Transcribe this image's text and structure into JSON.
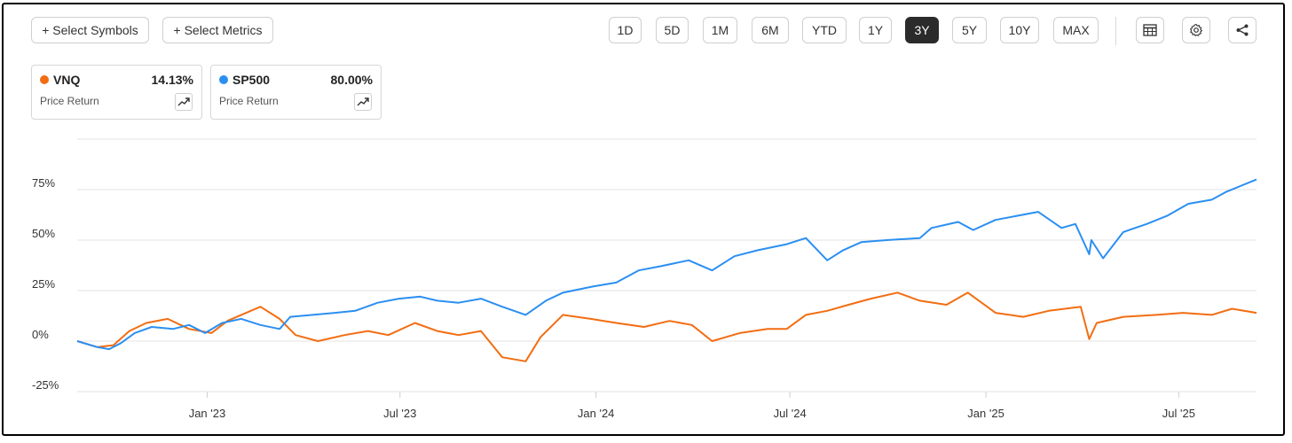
{
  "toolbar": {
    "select_symbols": "+ Select Symbols",
    "select_metrics": "+ Select Metrics",
    "ranges": [
      "1D",
      "5D",
      "1M",
      "6M",
      "YTD",
      "1Y",
      "3Y",
      "5Y",
      "10Y",
      "MAX"
    ],
    "active_range": "3Y",
    "icons": [
      "table-icon",
      "gear-icon",
      "share-icon"
    ]
  },
  "cards": [
    {
      "symbol": "VNQ",
      "value": "14.13%",
      "metric": "Price Return",
      "color": "#f26d12"
    },
    {
      "symbol": "SP500",
      "value": "80.00%",
      "metric": "Price Return",
      "color": "#2b8ff2"
    }
  ],
  "chart_data": {
    "type": "line",
    "x_tick_labels": [
      "Jan '23",
      "Jul '23",
      "Jan '24",
      "Jul '24",
      "Jan '25",
      "Jul '25"
    ],
    "x_tick_dates": [
      "2023-01-01",
      "2023-07-01",
      "2024-01-01",
      "2024-07-01",
      "2025-01-01",
      "2025-07-01"
    ],
    "x_range": [
      "2022-09-01",
      "2025-09-12"
    ],
    "y_ticks": [
      -25,
      0,
      25,
      50,
      75
    ],
    "y_tick_labels": [
      "-25%",
      "0%",
      "25%",
      "50%",
      "75%"
    ],
    "ylim": [
      -25,
      100
    ],
    "grid": true,
    "series": [
      {
        "name": "SP500",
        "color": "#2b8ff2",
        "x": [
          "2022-09-01",
          "2022-09-20",
          "2022-10-01",
          "2022-10-12",
          "2022-10-25",
          "2022-11-10",
          "2022-11-30",
          "2022-12-15",
          "2022-12-30",
          "2023-01-15",
          "2023-02-02",
          "2023-02-20",
          "2023-03-10",
          "2023-03-20",
          "2023-04-10",
          "2023-05-01",
          "2023-05-20",
          "2023-06-10",
          "2023-06-30",
          "2023-07-20",
          "2023-08-05",
          "2023-08-25",
          "2023-09-15",
          "2023-10-05",
          "2023-10-27",
          "2023-11-15",
          "2023-12-01",
          "2023-12-29",
          "2024-01-20",
          "2024-02-10",
          "2024-03-01",
          "2024-03-28",
          "2024-04-19",
          "2024-05-10",
          "2024-06-01",
          "2024-06-28",
          "2024-07-16",
          "2024-08-05",
          "2024-08-20",
          "2024-09-06",
          "2024-09-30",
          "2024-10-31",
          "2024-11-11",
          "2024-12-06",
          "2024-12-20",
          "2025-01-10",
          "2025-02-19",
          "2025-03-13",
          "2025-03-26",
          "2025-04-08",
          "2025-04-10",
          "2025-04-21",
          "2025-05-10",
          "2025-06-01",
          "2025-06-20",
          "2025-07-10",
          "2025-08-01",
          "2025-08-15",
          "2025-09-12"
        ],
        "values": [
          0,
          -3,
          -4,
          -1,
          4,
          7,
          6,
          8,
          4,
          9,
          11,
          8,
          6,
          12,
          13,
          14,
          15,
          19,
          21,
          22,
          20,
          19,
          21,
          17,
          13,
          20,
          24,
          27,
          29,
          35,
          37,
          40,
          35,
          42,
          45,
          48,
          51,
          40,
          45,
          49,
          50,
          51,
          56,
          59,
          55,
          60,
          64,
          56,
          58,
          43,
          50,
          41,
          54,
          58,
          62,
          68,
          70,
          74,
          80
        ]
      },
      {
        "name": "VNQ",
        "color": "#f26d12",
        "x": [
          "2022-09-01",
          "2022-09-20",
          "2022-10-05",
          "2022-10-20",
          "2022-11-05",
          "2022-11-25",
          "2022-12-15",
          "2023-01-05",
          "2023-01-20",
          "2023-02-02",
          "2023-02-20",
          "2023-03-10",
          "2023-03-25",
          "2023-04-15",
          "2023-05-10",
          "2023-06-01",
          "2023-06-20",
          "2023-07-15",
          "2023-08-05",
          "2023-08-25",
          "2023-09-15",
          "2023-10-05",
          "2023-10-27",
          "2023-11-10",
          "2023-12-01",
          "2023-12-27",
          "2024-01-20",
          "2024-02-15",
          "2024-03-10",
          "2024-03-31",
          "2024-04-19",
          "2024-05-15",
          "2024-06-10",
          "2024-06-28",
          "2024-07-16",
          "2024-08-05",
          "2024-08-25",
          "2024-09-15",
          "2024-10-10",
          "2024-10-31",
          "2024-11-25",
          "2024-12-15",
          "2025-01-10",
          "2025-02-05",
          "2025-03-01",
          "2025-03-31",
          "2025-04-08",
          "2025-04-15",
          "2025-05-10",
          "2025-06-10",
          "2025-07-05",
          "2025-08-01",
          "2025-08-20",
          "2025-09-12"
        ],
        "values": [
          0,
          -3,
          -2,
          5,
          9,
          11,
          6,
          4,
          10,
          13,
          17,
          11,
          3,
          0,
          3,
          5,
          3,
          9,
          5,
          3,
          5,
          -8,
          -10,
          2,
          13,
          11,
          9,
          7,
          10,
          8,
          0,
          4,
          6,
          6,
          13,
          15,
          18,
          21,
          24,
          20,
          18,
          24,
          14,
          12,
          15,
          17,
          1,
          9,
          12,
          13,
          14,
          13,
          16,
          14
        ]
      }
    ]
  }
}
